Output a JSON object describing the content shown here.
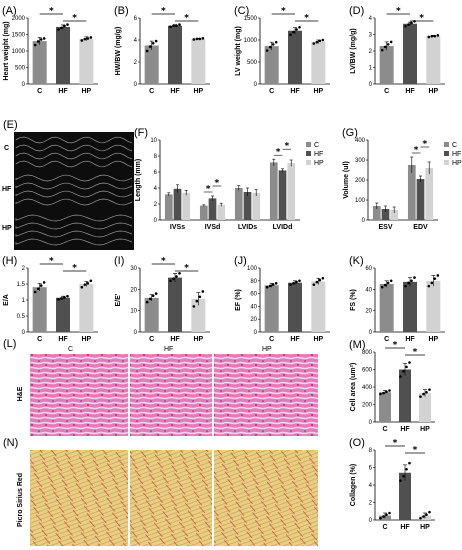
{
  "colors": {
    "C": "#8c8c8c",
    "HF": "#505050",
    "HP": "#d2d2d2"
  },
  "groups": [
    "C",
    "HF",
    "HP"
  ],
  "echo": {
    "label": "(E)",
    "rows": [
      "C",
      "HF",
      "HP"
    ]
  },
  "histology": {
    "he": {
      "label": "(L)",
      "row_label": "H&E",
      "columns": [
        "C",
        "HF",
        "HP"
      ]
    },
    "psr": {
      "label": "(N)",
      "row_label": "Picro Sirius Red"
    }
  },
  "chart_data": [
    {
      "id": "A",
      "label": "(A)",
      "type": "bar",
      "categories": [
        "C",
        "HF",
        "HP"
      ],
      "values": [
        1300,
        1730,
        1370
      ],
      "errors": [
        110,
        60,
        60
      ],
      "points": [
        [
          1180,
          1290,
          1350,
          1380
        ],
        [
          1650,
          1700,
          1760,
          1800
        ],
        [
          1320,
          1360,
          1380,
          1410
        ]
      ],
      "ylabel": "Heart weight (mg)",
      "ylim": [
        0,
        2000
      ],
      "yticks": [
        0,
        500,
        1000,
        1500,
        2000
      ],
      "sig": [
        [
          "C",
          "HF"
        ],
        [
          "HF",
          "HP"
        ]
      ]
    },
    {
      "id": "B",
      "label": "(B)",
      "type": "bar",
      "categories": [
        "C",
        "HF",
        "HP"
      ],
      "values": [
        3.5,
        5.3,
        4.1
      ],
      "errors": [
        0.4,
        0.1,
        0.05
      ],
      "points": [
        [
          3.0,
          3.4,
          3.7,
          3.9
        ],
        [
          5.2,
          5.3,
          5.3,
          5.4
        ],
        [
          4.05,
          4.1,
          4.1,
          4.15
        ]
      ],
      "ylabel": "HW/BW (mg/g)",
      "ylim": [
        0,
        6
      ],
      "yticks": [
        0,
        2,
        4,
        6
      ],
      "sig": [
        [
          "C",
          "HF"
        ],
        [
          "HF",
          "HP"
        ]
      ]
    },
    {
      "id": "C",
      "label": "(C)",
      "type": "bar",
      "categories": [
        "C",
        "HF",
        "HP"
      ],
      "values": [
        860,
        1210,
        960
      ],
      "errors": [
        90,
        70,
        40
      ],
      "points": [
        [
          760,
          840,
          900,
          950
        ],
        [
          1120,
          1180,
          1240,
          1290
        ],
        [
          920,
          950,
          980,
          1000
        ]
      ],
      "ylabel": "LV weight (mg)",
      "ylim": [
        0,
        1500
      ],
      "yticks": [
        0,
        500,
        1000,
        1500
      ],
      "sig": [
        [
          "C",
          "HF"
        ],
        [
          "HF",
          "HP"
        ]
      ]
    },
    {
      "id": "D",
      "label": "(D)",
      "type": "bar",
      "categories": [
        "C",
        "HF",
        "HP"
      ],
      "values": [
        2.3,
        3.65,
        2.9
      ],
      "errors": [
        0.25,
        0.1,
        0.05
      ],
      "points": [
        [
          2.05,
          2.25,
          2.4,
          2.55
        ],
        [
          3.5,
          3.6,
          3.7,
          3.8
        ],
        [
          2.85,
          2.9,
          2.9,
          2.95
        ]
      ],
      "ylabel": "LV/BW (mg/g)",
      "ylim": [
        0,
        4
      ],
      "yticks": [
        0,
        1,
        2,
        3,
        4
      ],
      "sig": [
        [
          "C",
          "HF"
        ],
        [
          "HF",
          "HP"
        ]
      ]
    },
    {
      "id": "F",
      "label": "(F)",
      "type": "grouped-bar",
      "categories": [
        "IVSs",
        "IVSd",
        "LVIDs",
        "LVIDd"
      ],
      "series": [
        {
          "name": "C",
          "values": [
            3.2,
            1.8,
            4.0,
            7.2
          ],
          "errors": [
            0.2,
            0.1,
            0.3,
            0.4
          ]
        },
        {
          "name": "HF",
          "values": [
            3.9,
            2.7,
            3.5,
            6.2
          ],
          "errors": [
            0.5,
            0.3,
            0.5,
            0.2
          ]
        },
        {
          "name": "HP",
          "values": [
            3.4,
            1.9,
            3.4,
            7.1
          ],
          "errors": [
            0.3,
            0.2,
            0.4,
            0.4
          ]
        }
      ],
      "ylabel": "Length (mm)",
      "ylim": [
        0,
        10
      ],
      "yticks": [
        0,
        2,
        4,
        6,
        8,
        10
      ],
      "sig": [
        [
          1,
          "C",
          "HF"
        ],
        [
          1,
          "HF",
          "HP"
        ],
        [
          3,
          "C",
          "HF"
        ],
        [
          3,
          "HF",
          "HP"
        ]
      ],
      "legend": "top-right"
    },
    {
      "id": "G",
      "label": "(G)",
      "type": "grouped-bar",
      "categories": [
        "ESV",
        "EDV"
      ],
      "series": [
        {
          "name": "C",
          "values": [
            70,
            275
          ],
          "errors": [
            15,
            40
          ]
        },
        {
          "name": "HF",
          "values": [
            55,
            205
          ],
          "errors": [
            15,
            15
          ]
        },
        {
          "name": "HP",
          "values": [
            50,
            260
          ],
          "errors": [
            15,
            30
          ]
        }
      ],
      "ylabel": "Volume (ul)",
      "ylim": [
        0,
        400
      ],
      "yticks": [
        0,
        100,
        200,
        300,
        400
      ],
      "sig": [
        [
          1,
          "C",
          "HF"
        ],
        [
          1,
          "HF",
          "HP"
        ]
      ],
      "legend": "top-right"
    },
    {
      "id": "H",
      "label": "(H)",
      "type": "bar",
      "categories": [
        "C",
        "HF",
        "HP"
      ],
      "values": [
        1.4,
        1.07,
        1.5
      ],
      "errors": [
        0.12,
        0.05,
        0.08
      ],
      "points": [
        [
          1.25,
          1.35,
          1.45,
          1.55
        ],
        [
          1.02,
          1.05,
          1.08,
          1.12
        ],
        [
          1.4,
          1.48,
          1.52,
          1.6
        ]
      ],
      "ylabel": "E/A",
      "ylim": [
        0,
        2.0
      ],
      "yticks": [
        0,
        0.5,
        1.0,
        1.5,
        2.0
      ],
      "sig": [
        [
          "C",
          "HF"
        ],
        [
          "HF",
          "HP"
        ]
      ]
    },
    {
      "id": "I",
      "label": "(I)",
      "type": "bar",
      "categories": [
        "C",
        "HF",
        "HP"
      ],
      "values": [
        16,
        25.5,
        15.5
      ],
      "errors": [
        1.5,
        2,
        3
      ],
      "points": [
        [
          14,
          15.5,
          17,
          18
        ],
        [
          24,
          25,
          26,
          27.5
        ],
        [
          12,
          14.5,
          16.5,
          19
        ]
      ],
      "ylabel": "E/E'",
      "ylim": [
        0,
        30
      ],
      "yticks": [
        0,
        10,
        20,
        30
      ],
      "sig": [
        [
          "C",
          "HF"
        ],
        [
          "HF",
          "HP"
        ]
      ]
    },
    {
      "id": "J",
      "label": "(J)",
      "type": "bar",
      "categories": [
        "C",
        "HF",
        "HP"
      ],
      "values": [
        73,
        77,
        79
      ],
      "errors": [
        3,
        3,
        5
      ],
      "points": [
        [
          70,
          72,
          74,
          76
        ],
        [
          74,
          76,
          78,
          80
        ],
        [
          74,
          78,
          81,
          84
        ]
      ],
      "ylabel": "EF (%)",
      "ylim": [
        0,
        100
      ],
      "yticks": [
        0,
        20,
        40,
        60,
        80,
        100
      ],
      "sig": []
    },
    {
      "id": "K",
      "label": "(K)",
      "type": "bar",
      "categories": [
        "C",
        "HF",
        "HP"
      ],
      "values": [
        45,
        47,
        48
      ],
      "errors": [
        3,
        4,
        5
      ],
      "points": [
        [
          42,
          44,
          46,
          48
        ],
        [
          43,
          46,
          48,
          51
        ],
        [
          43,
          46,
          50,
          53
        ]
      ],
      "ylabel": "FS (%)",
      "ylim": [
        0,
        60
      ],
      "yticks": [
        0,
        20,
        40,
        60
      ],
      "sig": []
    },
    {
      "id": "M",
      "label": "(M)",
      "type": "bar",
      "categories": [
        "C",
        "HF",
        "HP"
      ],
      "values": [
        340,
        600,
        330
      ],
      "errors": [
        20,
        70,
        40
      ],
      "points": [
        [
          320,
          330,
          345,
          360
        ],
        [
          520,
          580,
          630,
          680
        ],
        [
          290,
          320,
          340,
          370
        ]
      ],
      "ylabel": "Cell area (um²)",
      "ylim": [
        0,
        800
      ],
      "yticks": [
        0,
        200,
        400,
        600,
        800
      ],
      "sig": [
        [
          "C",
          "HF"
        ],
        [
          "HF",
          "HP"
        ]
      ]
    },
    {
      "id": "O",
      "label": "(O)",
      "type": "bar",
      "categories": [
        "C",
        "HF",
        "HP"
      ],
      "values": [
        0.5,
        5.4,
        0.5
      ],
      "errors": [
        0.3,
        0.9,
        0.3
      ],
      "points": [
        [
          0.2,
          0.4,
          0.6,
          0.8
        ],
        [
          4.5,
          5.0,
          5.8,
          6.5
        ],
        [
          0.2,
          0.4,
          0.6,
          0.9
        ]
      ],
      "ylabel": "Collagen (%)",
      "ylim": [
        0,
        8
      ],
      "yticks": [
        0,
        2,
        4,
        6,
        8
      ],
      "sig": [
        [
          "C",
          "HF"
        ],
        [
          "HF",
          "HP"
        ]
      ]
    }
  ]
}
